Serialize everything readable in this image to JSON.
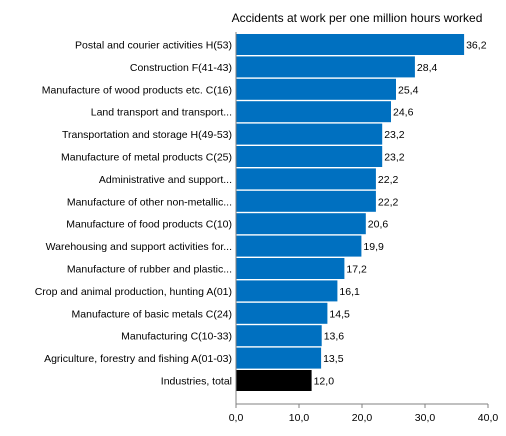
{
  "chart_data": {
    "type": "bar",
    "orientation": "horizontal",
    "title": "Accidents at work per one million hours worked",
    "xlabel": "",
    "ylabel": "",
    "xlim": [
      0,
      40
    ],
    "x_ticks": [
      0,
      10,
      20,
      30,
      40
    ],
    "x_tick_labels": [
      "0,0",
      "10,0",
      "20,0",
      "30,0",
      "40,0"
    ],
    "grid": false,
    "legend": "none",
    "colors": {
      "bar": "#0070c0",
      "total_bar": "#000000",
      "axis": "#808080",
      "text": "#000000"
    },
    "categories": [
      "Postal and courier activities H(53)",
      "Construction F(41-43)",
      "Manufacture of wood products etc. C(16)",
      "Land transport and transport...",
      "Transportation and storage H(49-53)",
      "Manufacture of metal products C(25)",
      "Administrative and support...",
      "Manufacture of other non-metallic...",
      "Manufacture of food products C(10)",
      "Warehousing and support activities for...",
      "Manufacture of rubber and plastic...",
      "Crop and animal production, hunting A(01)",
      "Manufacture of basic metals C(24)",
      "Manufacturing C(10-33)",
      "Agriculture, forestry and fishing A(01-03)",
      "Industries, total"
    ],
    "values": [
      36.2,
      28.4,
      25.4,
      24.6,
      23.2,
      23.2,
      22.2,
      22.2,
      20.6,
      19.9,
      17.2,
      16.1,
      14.5,
      13.6,
      13.5,
      12.0
    ],
    "value_labels": [
      "36,2",
      "28,4",
      "25,4",
      "24,6",
      "23,2",
      "23,2",
      "22,2",
      "22,2",
      "20,6",
      "19,9",
      "17,2",
      "16,1",
      "14,5",
      "13,6",
      "13,5",
      "12,0"
    ],
    "highlight_index": 15
  }
}
